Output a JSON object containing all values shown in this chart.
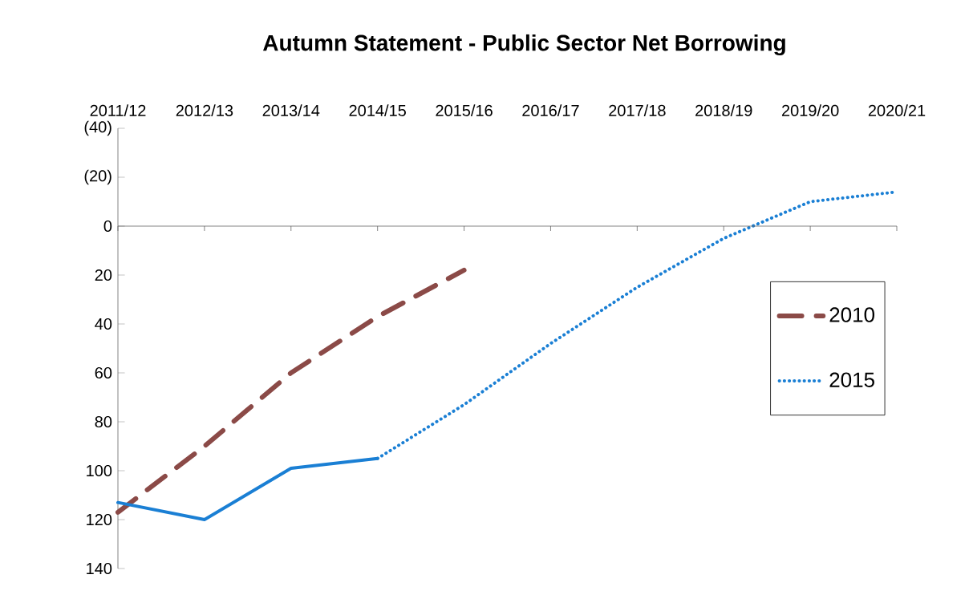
{
  "chart_data": {
    "type": "line",
    "title": "Autumn Statement - Public Sector Net Borrowing",
    "categories": [
      "2011/12",
      "2012/13",
      "2013/14",
      "2014/15",
      "2015/16",
      "2016/17",
      "2017/18",
      "2018/19",
      "2019/20",
      "2020/21"
    ],
    "ylim": [
      140,
      -40
    ],
    "yticks": [
      {
        "value": -40,
        "label": "(40)"
      },
      {
        "value": -20,
        "label": "(20)"
      },
      0,
      20,
      40,
      60,
      80,
      100,
      120,
      140
    ],
    "series": [
      {
        "name": "2010",
        "color": "#8b4a47",
        "line_style": "dashed",
        "values": [
          117,
          90,
          60,
          37,
          18,
          null,
          null,
          null,
          null,
          null
        ]
      },
      {
        "color": "#1a7fd4",
        "line_style": "solid",
        "values": [
          113,
          120,
          99,
          95,
          null,
          null,
          null,
          null,
          null,
          null
        ]
      },
      {
        "name": "2015",
        "color": "#1a7fd4",
        "line_style": "dotted",
        "values": [
          null,
          null,
          null,
          95,
          73,
          48,
          25,
          5,
          -10,
          -14
        ]
      }
    ],
    "legend": "right"
  }
}
